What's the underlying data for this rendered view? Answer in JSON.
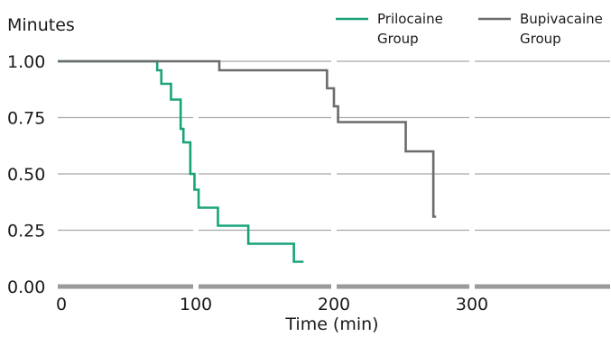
{
  "chart_data": {
    "type": "line",
    "step": true,
    "ylabel": "Minutes",
    "xlabel": "Time (min)",
    "xlim": [
      0,
      400
    ],
    "ylim": [
      0,
      1
    ],
    "xticks": [
      0,
      100,
      200,
      300
    ],
    "yticks": [
      0.0,
      0.25,
      0.5,
      0.75,
      1.0
    ],
    "ytick_labels": [
      "0.00",
      "0.25",
      "0.50",
      "0.75",
      "1.00"
    ],
    "xtick_labels": [
      "0",
      "100",
      "200",
      "300"
    ],
    "grid": "horizontal",
    "legend_position": "top-right",
    "series": [
      {
        "name": "Prilocaine Group",
        "color": "#1aa37a",
        "x": [
          0,
          70,
          72,
          75,
          82,
          89,
          91,
          93,
          96,
          99,
          102,
          105,
          116,
          138,
          171,
          178
        ],
        "y": [
          1.0,
          1.0,
          0.96,
          0.9,
          0.83,
          0.7,
          0.64,
          0.64,
          0.5,
          0.43,
          0.35,
          0.35,
          0.27,
          0.19,
          0.11,
          0.11
        ]
      },
      {
        "name": "Bupivacaine Group",
        "color": "#6b6b6b",
        "x": [
          0,
          117,
          195,
          200,
          203,
          252,
          272,
          274
        ],
        "y": [
          1.0,
          0.96,
          0.88,
          0.8,
          0.73,
          0.6,
          0.31,
          0.31
        ]
      }
    ]
  }
}
